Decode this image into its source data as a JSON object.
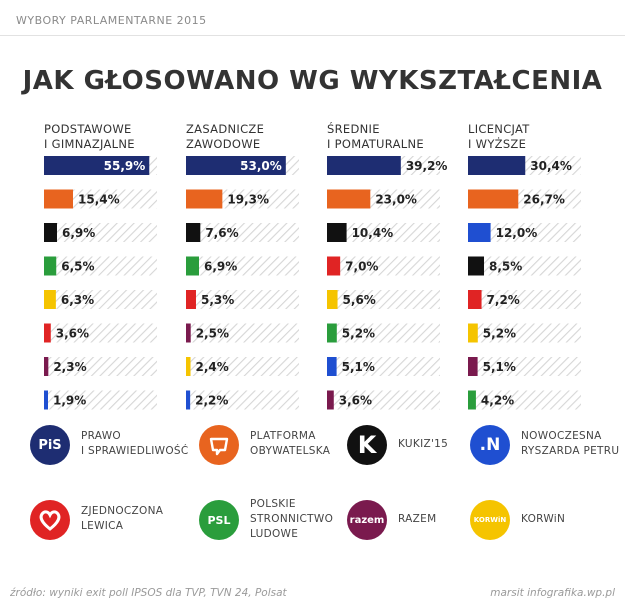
{
  "header": {
    "top_title": "WYBORY PARLAMENTARNE 2015",
    "main_title": "JAK GŁOSOWANO WG WYKSZTAŁCENIA"
  },
  "chart_data": {
    "type": "bar",
    "title": "JAK GŁOSOWANO WG WYKSZTAŁCENIA",
    "unit": "%",
    "xlim": [
      0,
      60
    ],
    "groups": [
      {
        "label": [
          "PODSTAWOWE",
          "I GIMNAZJALNE"
        ],
        "bars": [
          {
            "party": "PiS",
            "value": 55.9,
            "label": "55,9%",
            "color": "#1e2d72"
          },
          {
            "party": "PO",
            "value": 15.4,
            "label": "15,4%",
            "color": "#e8641f"
          },
          {
            "party": "Kukiz'15",
            "value": 6.9,
            "label": "6,9%",
            "color": "#111111"
          },
          {
            "party": "PSL",
            "value": 6.5,
            "label": "6,5%",
            "color": "#2a9d3c"
          },
          {
            "party": "KORWiN",
            "value": 6.3,
            "label": "6,3%",
            "color": "#f5c400"
          },
          {
            "party": "ZL",
            "value": 3.6,
            "label": "3,6%",
            "color": "#e02424"
          },
          {
            "party": "Razem",
            "value": 2.3,
            "label": "2,3%",
            "color": "#7a1a4e"
          },
          {
            "party": "Nowoczesna",
            "value": 1.9,
            "label": "1,9%",
            "color": "#1f4fd1"
          }
        ]
      },
      {
        "label": [
          "ZASADNICZE",
          "ZAWODOWE"
        ],
        "bars": [
          {
            "party": "PiS",
            "value": 53.0,
            "label": "53,0%",
            "color": "#1e2d72"
          },
          {
            "party": "PO",
            "value": 19.3,
            "label": "19,3%",
            "color": "#e8641f"
          },
          {
            "party": "Kukiz'15",
            "value": 7.6,
            "label": "7,6%",
            "color": "#111111"
          },
          {
            "party": "PSL",
            "value": 6.9,
            "label": "6,9%",
            "color": "#2a9d3c"
          },
          {
            "party": "ZL",
            "value": 5.3,
            "label": "5,3%",
            "color": "#e02424"
          },
          {
            "party": "Razem",
            "value": 2.5,
            "label": "2,5%",
            "color": "#7a1a4e"
          },
          {
            "party": "KORWiN",
            "value": 2.4,
            "label": "2,4%",
            "color": "#f5c400"
          },
          {
            "party": "Nowoczesna",
            "value": 2.2,
            "label": "2,2%",
            "color": "#1f4fd1"
          }
        ]
      },
      {
        "label": [
          "ŚREDNIE",
          "I POMATURALNE"
        ],
        "bars": [
          {
            "party": "PiS",
            "value": 39.2,
            "label": "39,2%",
            "color": "#1e2d72"
          },
          {
            "party": "PO",
            "value": 23.0,
            "label": "23,0%",
            "color": "#e8641f"
          },
          {
            "party": "Kukiz'15",
            "value": 10.4,
            "label": "10,4%",
            "color": "#111111"
          },
          {
            "party": "ZL",
            "value": 7.0,
            "label": "7,0%",
            "color": "#e02424"
          },
          {
            "party": "KORWiN",
            "value": 5.6,
            "label": "5,6%",
            "color": "#f5c400"
          },
          {
            "party": "PSL",
            "value": 5.2,
            "label": "5,2%",
            "color": "#2a9d3c"
          },
          {
            "party": "Nowoczesna",
            "value": 5.1,
            "label": "5,1%",
            "color": "#1f4fd1"
          },
          {
            "party": "Razem",
            "value": 3.6,
            "label": "3,6%",
            "color": "#7a1a4e"
          }
        ]
      },
      {
        "label": [
          "LICENCJAT",
          "I WYŻSZE"
        ],
        "bars": [
          {
            "party": "PiS",
            "value": 30.4,
            "label": "30,4%",
            "color": "#1e2d72"
          },
          {
            "party": "PO",
            "value": 26.7,
            "label": "26,7%",
            "color": "#e8641f"
          },
          {
            "party": "Nowoczesna",
            "value": 12.0,
            "label": "12,0%",
            "color": "#1f4fd1"
          },
          {
            "party": "Kukiz'15",
            "value": 8.5,
            "label": "8,5%",
            "color": "#111111"
          },
          {
            "party": "ZL",
            "value": 7.2,
            "label": "7,2%",
            "color": "#e02424"
          },
          {
            "party": "KORWiN",
            "value": 5.2,
            "label": "5,2%",
            "color": "#f5c400"
          },
          {
            "party": "Razem",
            "value": 5.1,
            "label": "5,1%",
            "color": "#7a1a4e"
          },
          {
            "party": "PSL",
            "value": 4.2,
            "label": "4,2%",
            "color": "#2a9d3c"
          }
        ]
      }
    ]
  },
  "legend": [
    {
      "id": "pis",
      "icon_text": "PiS",
      "label": "PRAWO\nI SPRAWIEDLIWOŚĆ",
      "color": "#1e2d72"
    },
    {
      "id": "po",
      "icon_text": "",
      "label": "PLATFORMA\nOBYWATELSKA",
      "color": "#e8641f"
    },
    {
      "id": "kukiz",
      "icon_text": "K",
      "label": "KUKIZ'15",
      "color": "#111111"
    },
    {
      "id": "nowoczesna",
      "icon_text": ".N",
      "label": "NOWOCZESNA\nRYSZARDA PETRU",
      "color": "#1f4fd1"
    },
    {
      "id": "zl",
      "icon_text": "",
      "label": "ZJEDNOCZONA\nLEWICA",
      "color": "#e02424"
    },
    {
      "id": "psl",
      "icon_text": "PSL",
      "label": "POLSKIE\nSTRONNICTWO\nLUDOWE",
      "color": "#2a9d3c"
    },
    {
      "id": "razem",
      "icon_text": "razem",
      "label": "RAZEM",
      "color": "#7a1a4e"
    },
    {
      "id": "korwin",
      "icon_text": "KORWiN",
      "label": "KORWiN",
      "color": "#f5c400"
    }
  ],
  "footer": {
    "source": "źródło: wyniki exit poll IPSOS dla TVP, TVN 24, Polsat",
    "credit": "marsit infografika.wp.pl"
  }
}
